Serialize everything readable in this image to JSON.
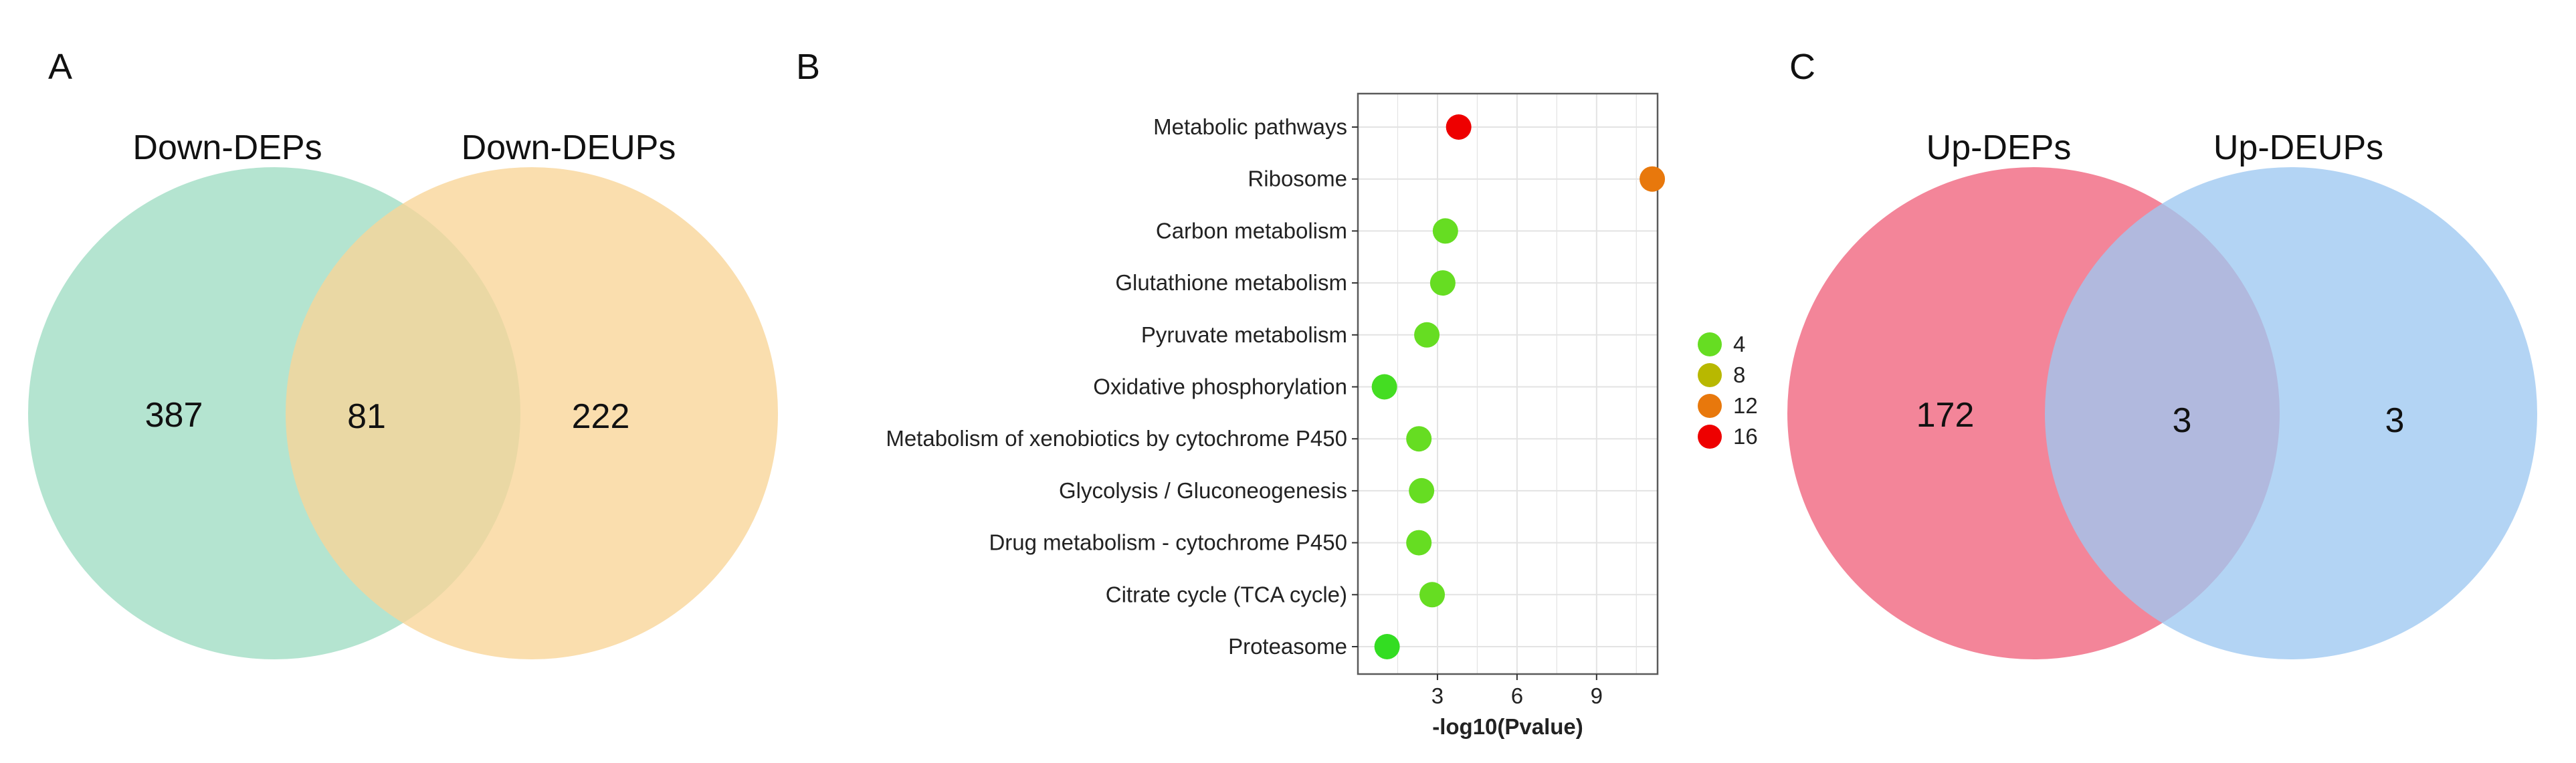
{
  "panel_labels": {
    "a": "A",
    "b": "B",
    "c": "C"
  },
  "colors": {
    "venn_a_left": "#9fdcc3",
    "venn_a_right": "#f8d597",
    "venn_c_left": "#f06a82",
    "venn_c_right": "#9ec8f1",
    "grid": "#e3e3e3",
    "panel_border": "#5a5a5a"
  },
  "chart_data": [
    {
      "type": "venn",
      "panel": "A",
      "sets": [
        "Down-DEPs",
        "Down-DEUPs"
      ],
      "only_left": "387",
      "intersection": "81",
      "only_right": "222"
    },
    {
      "type": "scatter",
      "panel": "B",
      "xlabel": "-log10(Pvalue)",
      "ylabel": "",
      "xlim": [
        0,
        11.3
      ],
      "xticks": [
        "3",
        "6",
        "9"
      ],
      "xtick_values": [
        3,
        6,
        9
      ],
      "grid": true,
      "legend_placement": "right",
      "legend": {
        "labels": [
          "4",
          "8",
          "12",
          "16"
        ],
        "colors": [
          "#66dd22",
          "#b8b800",
          "#e8780c",
          "#ee0000"
        ]
      },
      "categories": [
        "Metabolic pathways",
        "Ribosome",
        "Carbon metabolism",
        "Glutathione metabolism",
        "Pyruvate metabolism",
        "Oxidative phosphorylation",
        "Metabolism of xenobiotics by cytochrome P450",
        "Glycolysis / Gluconeogenesis",
        "Drug metabolism - cytochrome P450",
        "Citrate cycle (TCA cycle)",
        "Proteasome"
      ],
      "values": [
        3.8,
        11.1,
        3.3,
        3.2,
        2.6,
        1.0,
        2.3,
        2.4,
        2.3,
        2.8,
        1.1
      ],
      "point_colors": [
        "#ee0000",
        "#e8780c",
        "#66dd22",
        "#66dd22",
        "#66dd22",
        "#44dd22",
        "#66dd22",
        "#66dd22",
        "#66dd22",
        "#66dd22",
        "#33dd22"
      ]
    },
    {
      "type": "venn",
      "panel": "C",
      "sets": [
        "Up-DEPs",
        "Up-DEUPs"
      ],
      "only_left": "172",
      "intersection": "3",
      "only_right": "3"
    }
  ]
}
